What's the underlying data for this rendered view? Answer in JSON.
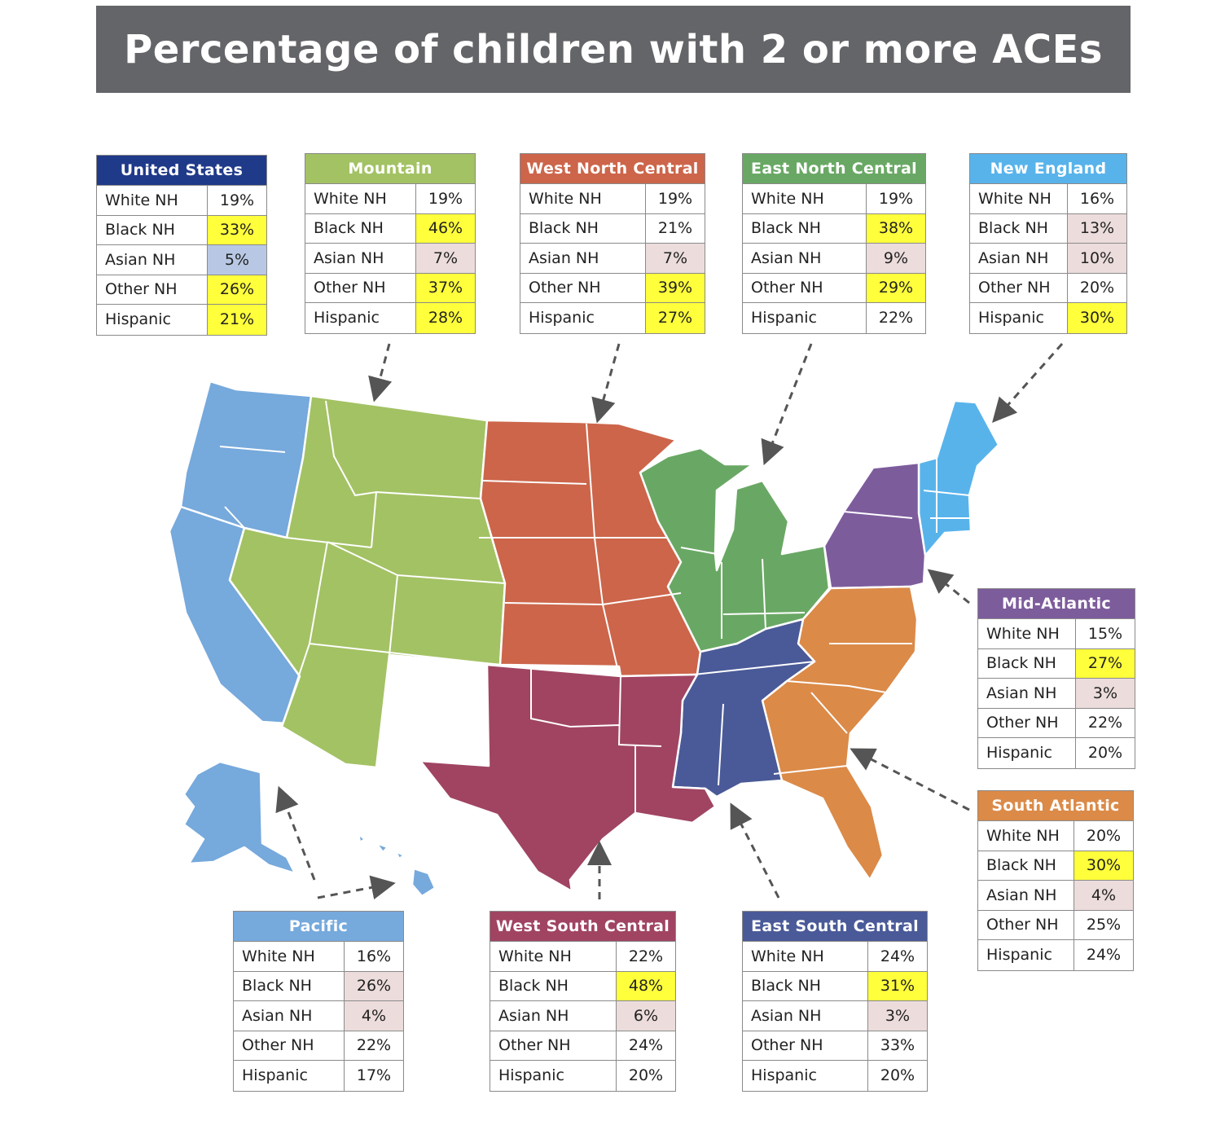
{
  "title": "Percentage of children with 2 or more ACEs",
  "row_labels": [
    "White NH",
    "Black NH",
    "Asian NH",
    "Other NH",
    "Hispanic"
  ],
  "highlight_colors": {
    "high": "#ffff3b",
    "low": "#ecdcdc",
    "us_low": "#b8c8e4"
  },
  "regions": {
    "united_states": {
      "name": "United States",
      "color": "#203a8a",
      "values": [
        "19%",
        "33%",
        "5%",
        "26%",
        "21%"
      ],
      "highlights": [
        "",
        "high",
        "blue",
        "high",
        "high"
      ]
    },
    "mountain": {
      "name": "Mountain",
      "color": "#a3c264",
      "values": [
        "19%",
        "46%",
        "7%",
        "37%",
        "28%"
      ],
      "highlights": [
        "",
        "high",
        "low",
        "high",
        "high"
      ]
    },
    "west_north_central": {
      "name": "West North Central",
      "color": "#cc654a",
      "values": [
        "19%",
        "21%",
        "7%",
        "39%",
        "27%"
      ],
      "highlights": [
        "",
        "",
        "low",
        "high",
        "high"
      ]
    },
    "east_north_central": {
      "name": "East North Central",
      "color": "#69a864",
      "values": [
        "19%",
        "38%",
        "9%",
        "29%",
        "22%"
      ],
      "highlights": [
        "",
        "high",
        "low",
        "high",
        ""
      ]
    },
    "new_england": {
      "name": "New England",
      "color": "#58b3eb",
      "values": [
        "16%",
        "13%",
        "10%",
        "20%",
        "30%"
      ],
      "highlights": [
        "",
        "low",
        "low",
        "",
        "high"
      ]
    },
    "mid_atlantic": {
      "name": "Mid-Atlantic",
      "color": "#7d5c9c",
      "values": [
        "15%",
        "27%",
        "3%",
        "22%",
        "20%"
      ],
      "highlights": [
        "",
        "high",
        "low",
        "",
        ""
      ]
    },
    "south_atlantic": {
      "name": "South Atlantic",
      "color": "#db8a48",
      "values": [
        "20%",
        "30%",
        "4%",
        "25%",
        "24%"
      ],
      "highlights": [
        "",
        "high",
        "low",
        "",
        ""
      ]
    },
    "pacific": {
      "name": "Pacific",
      "color": "#76a9dc",
      "values": [
        "16%",
        "26%",
        "4%",
        "22%",
        "17%"
      ],
      "highlights": [
        "",
        "low",
        "low",
        "",
        ""
      ]
    },
    "west_south_central": {
      "name": "West South Central",
      "color": "#a04462",
      "values": [
        "22%",
        "48%",
        "6%",
        "24%",
        "20%"
      ],
      "highlights": [
        "",
        "high",
        "low",
        "",
        ""
      ]
    },
    "east_south_central": {
      "name": "East South Central",
      "color": "#4a5a98",
      "values": [
        "24%",
        "31%",
        "3%",
        "33%",
        "20%"
      ],
      "highlights": [
        "",
        "high",
        "low",
        "",
        ""
      ]
    }
  }
}
